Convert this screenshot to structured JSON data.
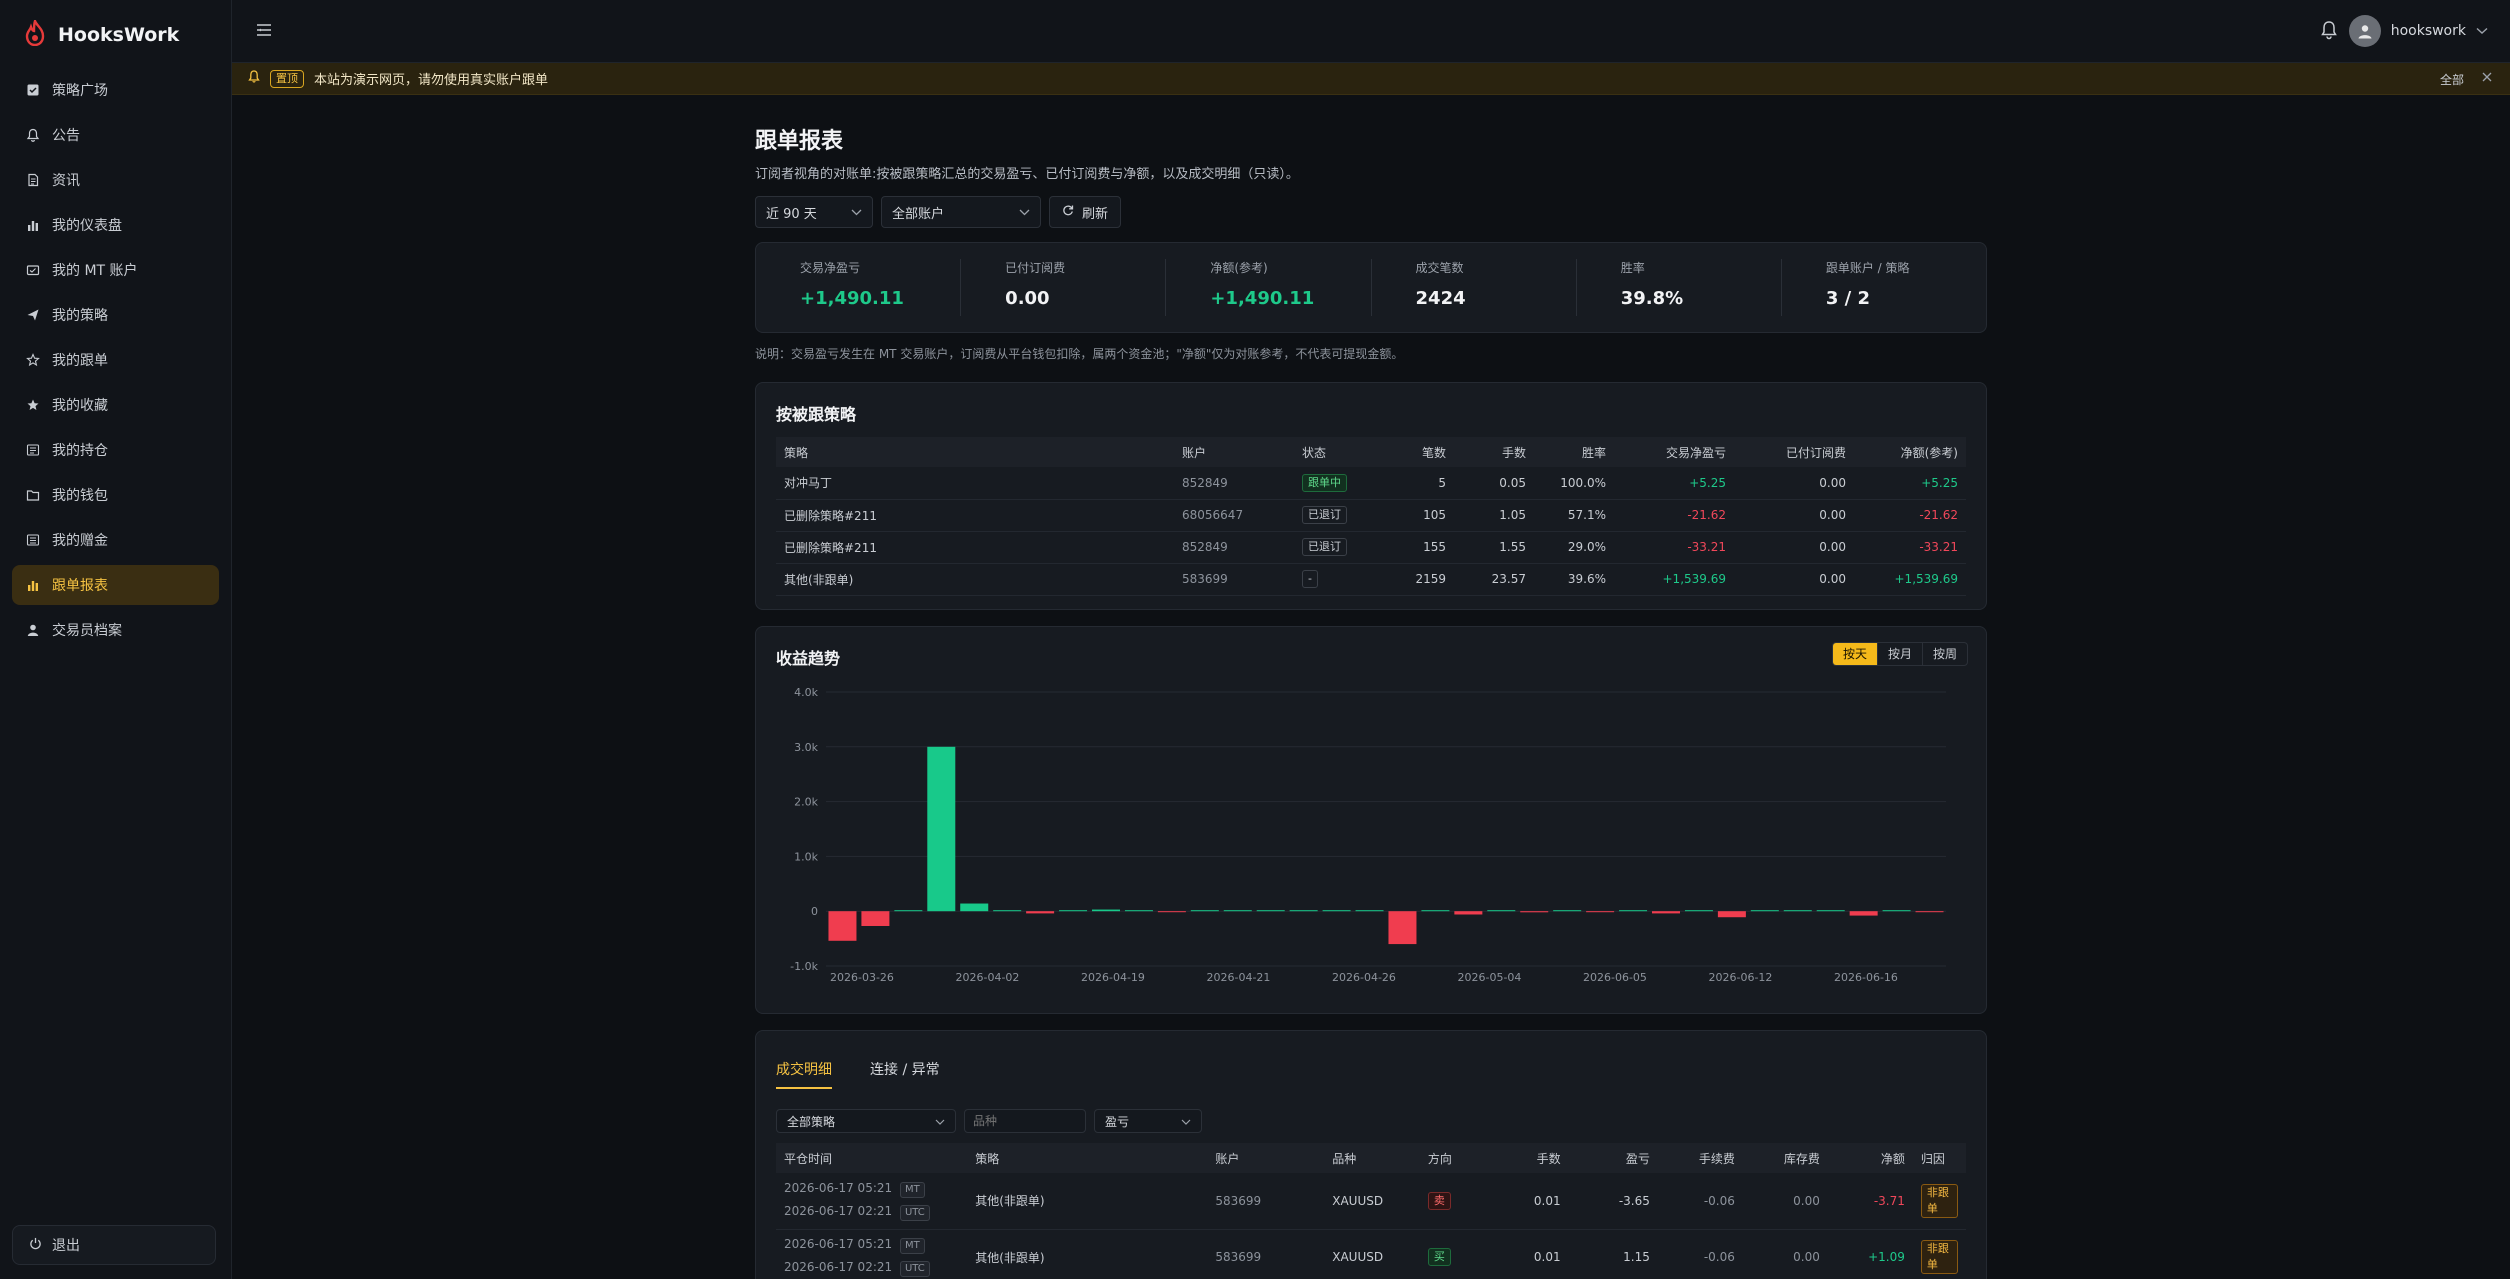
{
  "app": {
    "brand": "HooksWork"
  },
  "sidebar": {
    "items": [
      {
        "label": "策略广场",
        "icon": "square-check-icon"
      },
      {
        "label": "公告",
        "icon": "bell-icon"
      },
      {
        "label": "资讯",
        "icon": "document-icon"
      },
      {
        "label": "我的仪表盘",
        "icon": "bar-chart-icon"
      },
      {
        "label": "我的 MT 账户",
        "icon": "wallet-card-icon"
      },
      {
        "label": "我的策略",
        "icon": "send-icon"
      },
      {
        "label": "我的跟单",
        "icon": "star-outline-icon"
      },
      {
        "label": "我的收藏",
        "icon": "star-filled-icon"
      },
      {
        "label": "我的持仓",
        "icon": "list-icon"
      },
      {
        "label": "我的钱包",
        "icon": "folder-icon"
      },
      {
        "label": "我的赠金",
        "icon": "gift-list-icon"
      },
      {
        "label": "跟单报表",
        "icon": "bar-chart-icon"
      },
      {
        "label": "交易员档案",
        "icon": "user-icon"
      }
    ],
    "active_index": 11,
    "logout_label": "退出"
  },
  "topbar": {
    "username": "hookswork"
  },
  "banner": {
    "badge": "置顶",
    "text": "本站为演示网页，请勿使用真实账户跟单",
    "right_label": "全部"
  },
  "page": {
    "title": "跟单报表",
    "description": "订阅者视角的对账单:按被跟策略汇总的交易盈亏、已付订阅费与净额，以及成交明细（只读）。"
  },
  "filters": {
    "range": "近 90 天",
    "account": "全部账户",
    "refresh": "刷新"
  },
  "stats": [
    {
      "label": "交易净盈亏",
      "value": "+1,490.11",
      "tone": "green"
    },
    {
      "label": "已付订阅费",
      "value": "0.00",
      "tone": ""
    },
    {
      "label": "净额(参考)",
      "value": "+1,490.11",
      "tone": "green"
    },
    {
      "label": "成交笔数",
      "value": "2424",
      "tone": ""
    },
    {
      "label": "胜率",
      "value": "39.8%",
      "tone": ""
    },
    {
      "label": "跟单账户 / 策略",
      "value": "3 / 2",
      "tone": ""
    }
  ],
  "note": "说明：交易盈亏发生在 MT 交易账户，订阅费从平台钱包扣除，属两个资金池；\"净额\"仅为对账参考，不代表可提现金额。",
  "strategy_table": {
    "title": "按被跟策略",
    "headers": [
      "策略",
      "账户",
      "状态",
      "笔数",
      "手数",
      "胜率",
      "交易净盈亏",
      "已付订阅费",
      "净额(参考)"
    ],
    "rows": [
      {
        "strategy": "对冲马丁",
        "account": "852849",
        "status": "跟单中",
        "status_tone": "green",
        "count": "5",
        "lots": "0.05",
        "win": "100.0%",
        "pnl": "+5.25",
        "fee": "0.00",
        "net": "+5.25",
        "tone": "green"
      },
      {
        "strategy": "已删除策略#211",
        "account": "68056647",
        "status": "已退订",
        "status_tone": "",
        "count": "105",
        "lots": "1.05",
        "win": "57.1%",
        "pnl": "-21.62",
        "fee": "0.00",
        "net": "-21.62",
        "tone": "red"
      },
      {
        "strategy": "已删除策略#211",
        "account": "852849",
        "status": "已退订",
        "status_tone": "",
        "count": "155",
        "lots": "1.55",
        "win": "29.0%",
        "pnl": "-33.21",
        "fee": "0.00",
        "net": "-33.21",
        "tone": "red"
      },
      {
        "strategy": "其他(非跟单)",
        "account": "583699",
        "status": "-",
        "status_tone": "",
        "count": "2159",
        "lots": "23.57",
        "win": "39.6%",
        "pnl": "+1,539.69",
        "fee": "0.00",
        "net": "+1,539.69",
        "tone": "green"
      }
    ]
  },
  "trend": {
    "title": "收益趋势",
    "toggles": [
      "按天",
      "按月",
      "按周"
    ],
    "active_toggle": 0
  },
  "chart_data": {
    "type": "bar",
    "title": "收益趋势",
    "ylim": [
      -1000,
      4000
    ],
    "yticks": [
      -1000,
      0,
      1000,
      2000,
      3000,
      4000
    ],
    "ytick_labels": [
      "-1.0k",
      "0",
      "1.0k",
      "2.0k",
      "3.0k",
      "4.0k"
    ],
    "xtick_labels": [
      "2026-03-26",
      "2026-04-02",
      "2026-04-19",
      "2026-04-21",
      "2026-04-26",
      "2026-05-04",
      "2026-06-05",
      "2026-06-12",
      "2026-06-16"
    ],
    "values": [
      -540,
      -270,
      0,
      3000,
      140,
      0,
      -40,
      0,
      30,
      0,
      -15,
      0,
      5,
      0,
      5,
      0,
      0,
      -600,
      0,
      -60,
      0,
      -20,
      0,
      -10,
      0,
      -40,
      0,
      -110,
      0,
      10,
      0,
      -80,
      0,
      -15
    ],
    "positive_color": "#18c98a",
    "negative_color": "#f03d4f",
    "grid": true
  },
  "details": {
    "tabs": [
      "成交明细",
      "连接 / 异常"
    ],
    "active_tab": 0,
    "filter_strategy": "全部策略",
    "filter_symbol_placeholder": "品种",
    "filter_pnl": "盈亏",
    "headers": [
      "平仓时间",
      "策略",
      "账户",
      "品种",
      "方向",
      "手数",
      "盈亏",
      "手续费",
      "库存费",
      "净额",
      "归因"
    ],
    "rows": [
      {
        "time_mt": "2026-06-17 05:21",
        "mt_tag": "MT",
        "time_utc": "2026-06-17 02:21",
        "utc_tag": "UTC",
        "strategy": "其他(非跟单)",
        "account": "583699",
        "symbol": "XAUUSD",
        "side": "卖",
        "side_tone": "red",
        "lots": "0.01",
        "pnl": "-3.65",
        "fee": "-0.06",
        "swap": "0.00",
        "net": "-3.71",
        "net_tone": "red",
        "attr": "非跟单"
      },
      {
        "time_mt": "2026-06-17 05:21",
        "mt_tag": "MT",
        "time_utc": "2026-06-17 02:21",
        "utc_tag": "UTC",
        "strategy": "其他(非跟单)",
        "account": "583699",
        "symbol": "XAUUSD",
        "side": "买",
        "side_tone": "green",
        "lots": "0.01",
        "pnl": "1.15",
        "fee": "-0.06",
        "swap": "0.00",
        "net": "+1.09",
        "net_tone": "green",
        "attr": "非跟单"
      }
    ]
  }
}
